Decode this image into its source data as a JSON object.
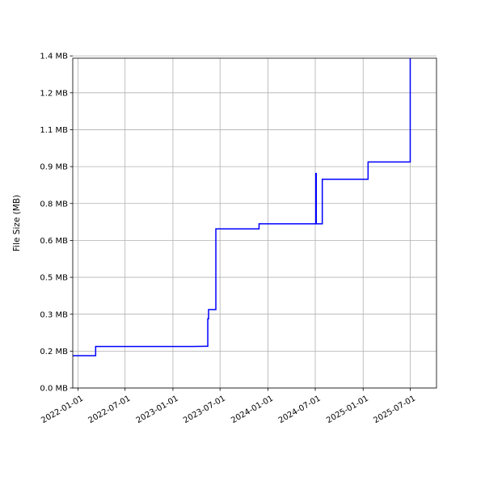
{
  "chart_data": {
    "type": "line",
    "title": "",
    "xlabel": "",
    "ylabel": "File Size (MB)",
    "grid": true,
    "x_axis_type": "date",
    "xlim": [
      "2021-12-12",
      "2025-10-10"
    ],
    "ylim": [
      0,
      1.43
    ],
    "y_ticks": [
      {
        "value": 0.0,
        "label": "0.0 MB"
      },
      {
        "value": 0.16,
        "label": "0.2 MB"
      },
      {
        "value": 0.32,
        "label": "0.3 MB"
      },
      {
        "value": 0.48,
        "label": "0.5 MB"
      },
      {
        "value": 0.64,
        "label": "0.6 MB"
      },
      {
        "value": 0.8,
        "label": "0.8 MB"
      },
      {
        "value": 0.96,
        "label": "0.9 MB"
      },
      {
        "value": 1.12,
        "label": "1.1 MB"
      },
      {
        "value": 1.28,
        "label": "1.2 MB"
      },
      {
        "value": 1.44,
        "label": "1.4 MB"
      }
    ],
    "x_ticks": [
      {
        "value": "2022-01-01",
        "label": "2022-01-01"
      },
      {
        "value": "2022-07-01",
        "label": "2022-07-01"
      },
      {
        "value": "2023-01-01",
        "label": "2023-01-01"
      },
      {
        "value": "2023-07-01",
        "label": "2023-07-01"
      },
      {
        "value": "2024-01-01",
        "label": "2024-01-01"
      },
      {
        "value": "2024-07-01",
        "label": "2024-07-01"
      },
      {
        "value": "2025-01-01",
        "label": "2025-01-01"
      },
      {
        "value": "2025-07-01",
        "label": "2025-07-01"
      }
    ],
    "series": [
      {
        "color": "#0000ff",
        "points": [
          [
            "2021-12-12",
            0.14
          ],
          [
            "2022-03-10",
            0.14
          ],
          [
            "2022-03-10",
            0.18
          ],
          [
            "2023-03-15",
            0.18
          ],
          [
            "2023-05-15",
            0.181
          ],
          [
            "2023-05-15",
            0.3
          ],
          [
            "2023-05-18",
            0.3
          ],
          [
            "2023-05-18",
            0.34
          ],
          [
            "2023-06-15",
            0.34
          ],
          [
            "2023-06-15",
            0.69
          ],
          [
            "2023-11-28",
            0.69
          ],
          [
            "2023-11-28",
            0.712
          ],
          [
            "2024-07-03",
            0.712
          ],
          [
            "2024-07-03",
            0.93
          ],
          [
            "2024-07-05",
            0.93
          ],
          [
            "2024-07-05",
            0.712
          ],
          [
            "2024-07-28",
            0.712
          ],
          [
            "2024-07-28",
            0.905
          ],
          [
            "2025-01-20",
            0.905
          ],
          [
            "2025-01-20",
            0.98
          ],
          [
            "2025-07-01",
            0.98
          ],
          [
            "2025-07-01",
            1.44
          ]
        ]
      }
    ]
  }
}
